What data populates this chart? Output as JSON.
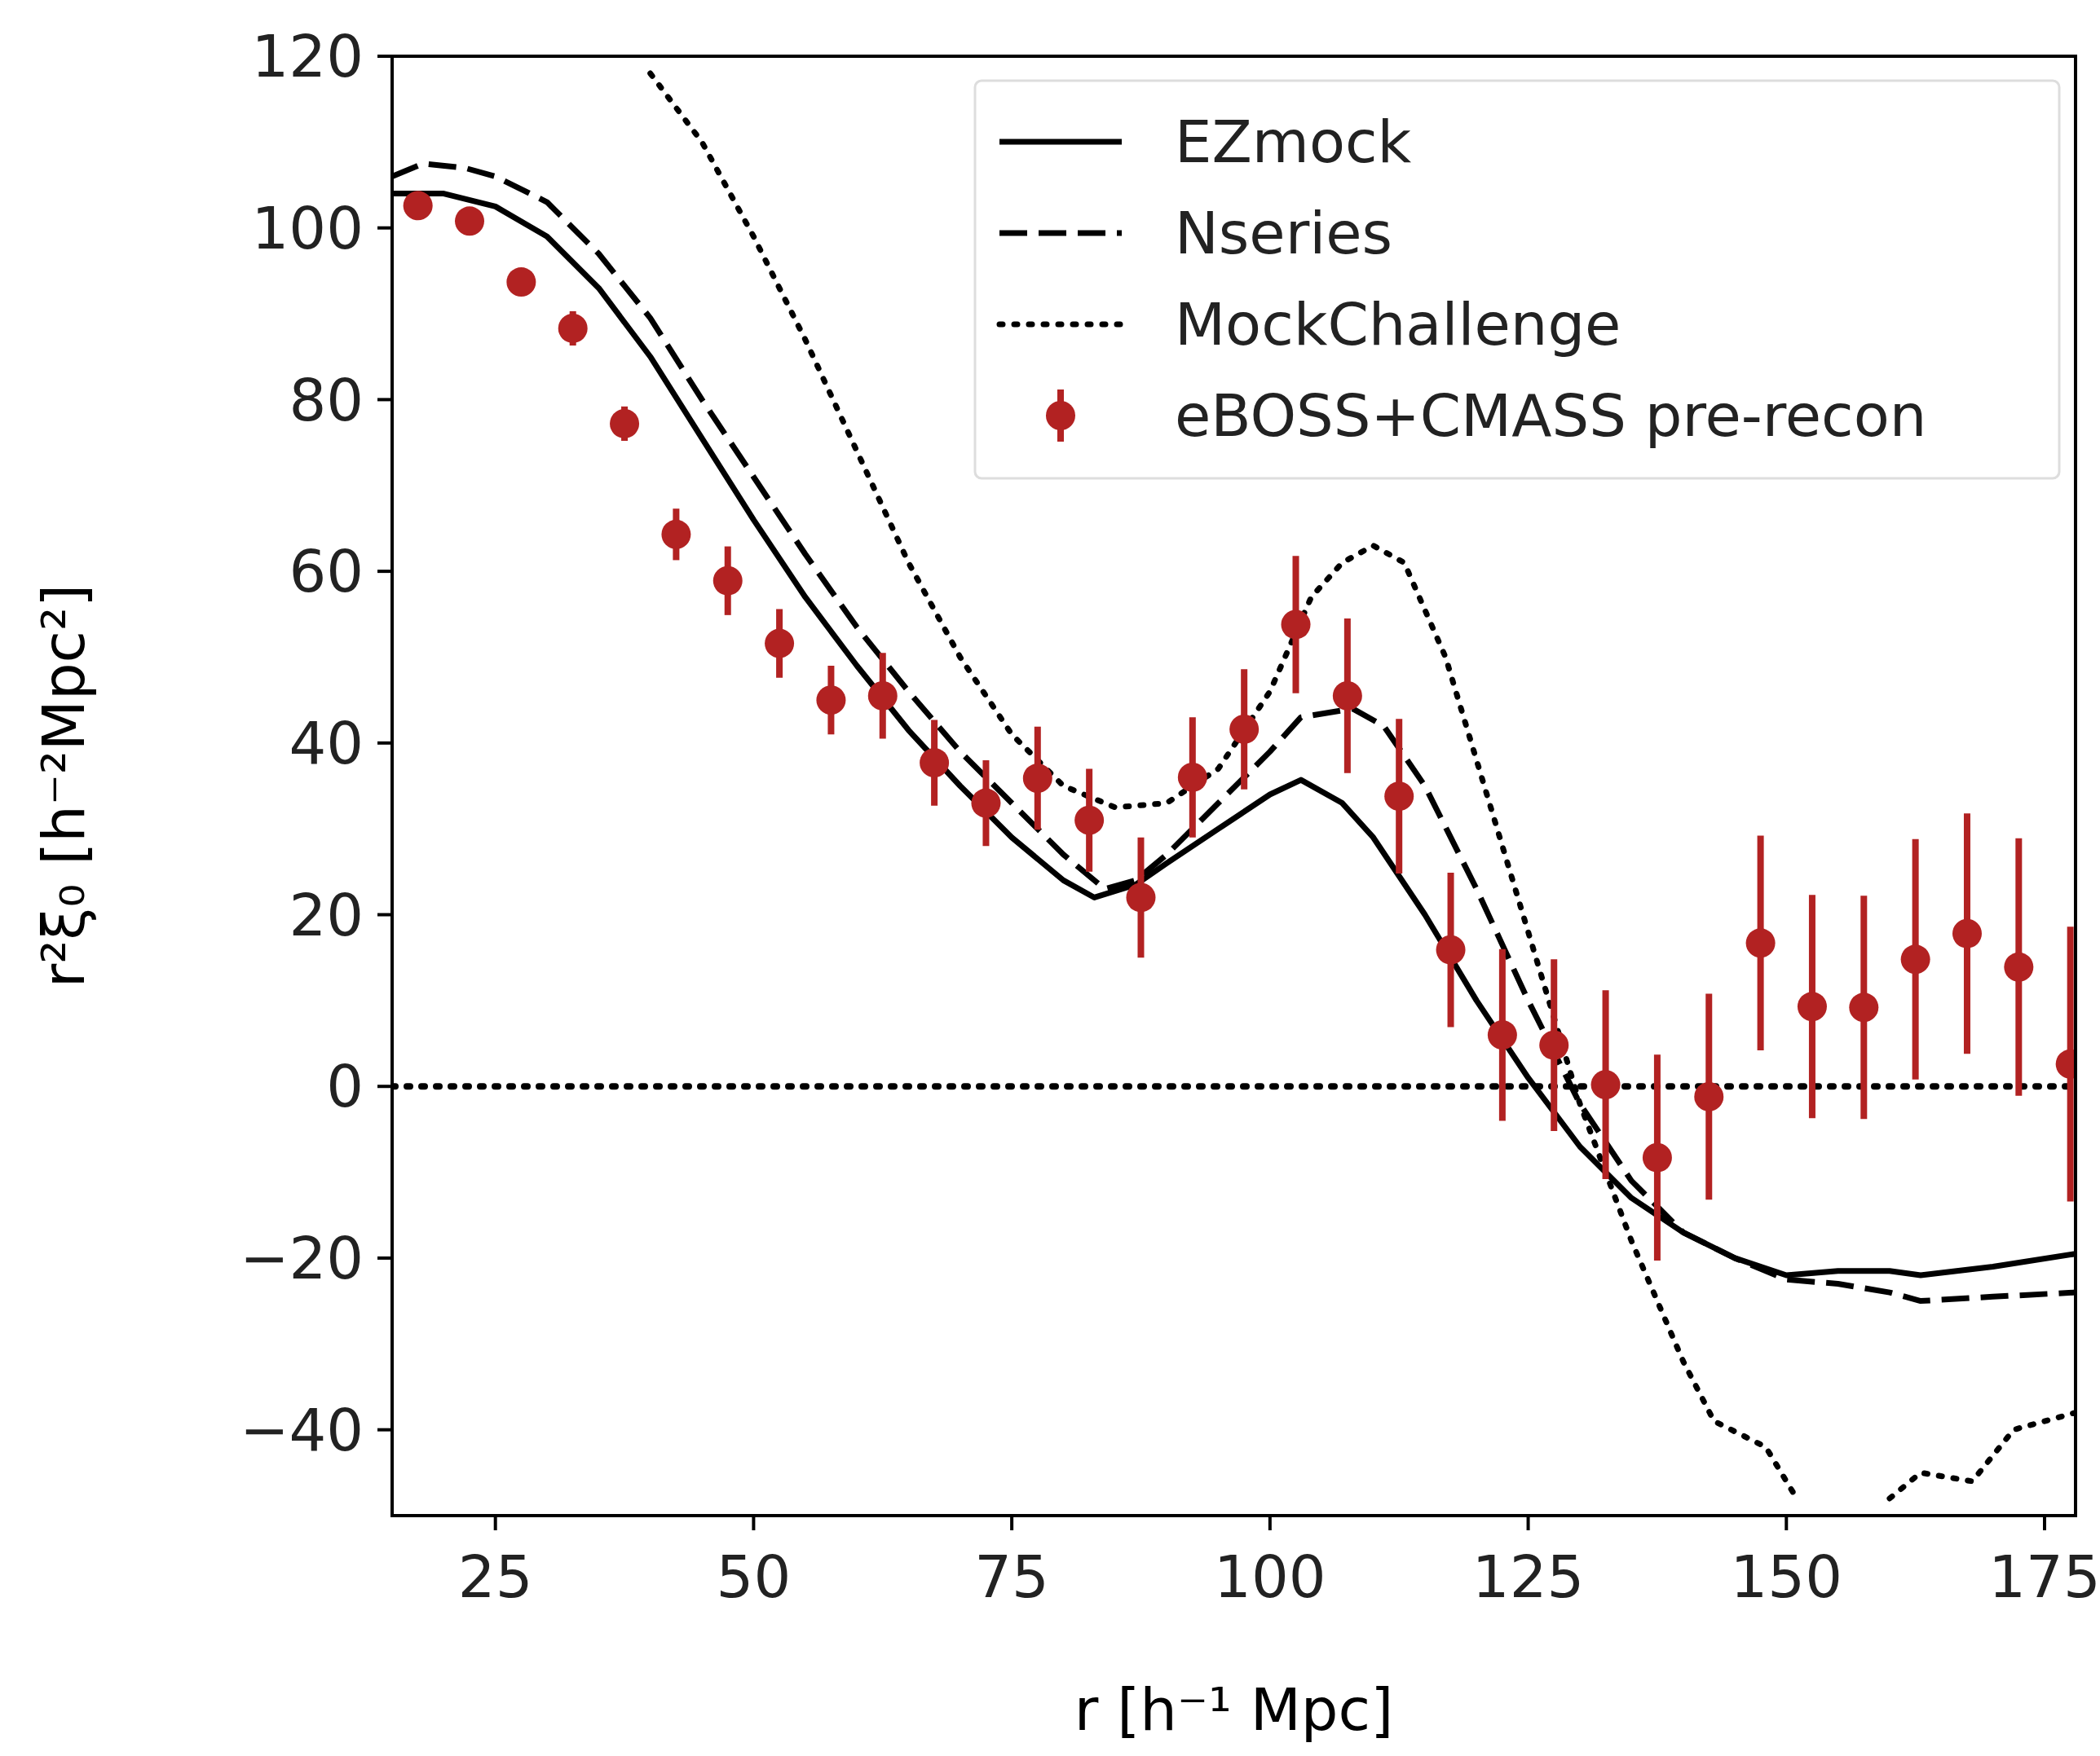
{
  "chart_data": {
    "type": "line",
    "xlabel": "r [h⁻¹ Mpc]",
    "ylabel": "r²ξ₀ [h⁻²Mpc²]",
    "xlim": [
      15,
      178
    ],
    "ylim": [
      -50,
      120
    ],
    "xticks": [
      25,
      50,
      75,
      100,
      125,
      150,
      175
    ],
    "yticks": [
      -40,
      -20,
      0,
      20,
      40,
      60,
      80,
      100,
      120
    ],
    "grid": false,
    "legend": "top right",
    "ref_lines": [
      {
        "axis": "y",
        "value": 0,
        "color": "#000000",
        "line_style": "dotted"
      }
    ],
    "series": [
      {
        "name": "EZmock",
        "type": "line",
        "color": "#000000",
        "line_style": "solid",
        "x": [
          15,
          20,
          25,
          30,
          35,
          40,
          45,
          50,
          55,
          60,
          65,
          70,
          75,
          80,
          83,
          87,
          90,
          95,
          100,
          103,
          107,
          110,
          115,
          120,
          125,
          130,
          135,
          140,
          145,
          150,
          155,
          160,
          163,
          170,
          178
        ],
        "values": [
          104,
          104,
          102.5,
          99,
          93,
          85,
          75.5,
          66,
          57,
          49,
          41.5,
          35,
          29,
          24,
          22,
          23.5,
          26,
          30,
          34,
          35.7,
          33,
          29,
          20,
          10,
          1,
          -7,
          -13,
          -17,
          -20,
          -22,
          -21.5,
          -21.5,
          -22,
          -21,
          -19.5
        ]
      },
      {
        "name": "Nseries",
        "type": "line",
        "color": "#000000",
        "line_style": "dashed",
        "x": [
          15,
          18,
          22,
          25,
          30,
          35,
          40,
          45,
          50,
          55,
          60,
          65,
          70,
          75,
          80,
          84,
          87,
          90,
          95,
          100,
          103,
          108,
          111,
          115,
          120,
          125,
          130,
          135,
          140,
          145,
          150,
          155,
          160,
          163,
          170,
          178
        ],
        "values": [
          106,
          107.5,
          107,
          106,
          103,
          97,
          89.5,
          80,
          71,
          62,
          53.5,
          46,
          39,
          33,
          27,
          23,
          24,
          27,
          33,
          39,
          43,
          44,
          42,
          35,
          23,
          10,
          -2,
          -11,
          -17,
          -20,
          -22.5,
          -23,
          -24,
          -25,
          -24.5,
          -24
        ]
      },
      {
        "name": "MockChallenge",
        "type": "line",
        "color": "#000000",
        "line_style": "dotted",
        "x": [
          40,
          45,
          50,
          55,
          60,
          65,
          70,
          75,
          80,
          85,
          90,
          95,
          100,
          104,
          107,
          110,
          113,
          117,
          120,
          125,
          130,
          135,
          140,
          143,
          148,
          151,
          156,
          160,
          163,
          168,
          172,
          178
        ],
        "values": [
          118,
          110,
          99,
          87,
          74,
          61,
          50,
          41,
          35,
          32.5,
          33,
          37,
          46,
          57,
          61,
          63,
          61,
          50,
          38,
          18,
          -2,
          -18,
          -32,
          -39,
          -42,
          -48,
          null,
          -48,
          -45,
          -46,
          -40,
          -38
        ]
      },
      {
        "name": "eBOSS+CMASS pre-recon",
        "type": "scatter",
        "color": "#b22222",
        "marker": "circle",
        "x": [
          17.5,
          22.5,
          27.5,
          32.5,
          37.5,
          42.5,
          47.5,
          52.5,
          57.5,
          62.5,
          67.5,
          72.5,
          77.5,
          82.5,
          87.5,
          92.5,
          97.5,
          102.5,
          107.5,
          112.5,
          117.5,
          122.5,
          127.5,
          132.5,
          137.5,
          142.5,
          147.5,
          152.5,
          157.5,
          162.5,
          167.5,
          172.5,
          177.5
        ],
        "values": [
          102.6,
          100.8,
          93.7,
          88.3,
          77.2,
          64.3,
          58.9,
          51.6,
          45,
          45.5,
          37.7,
          33,
          35.9,
          31,
          22,
          36,
          41.6,
          53.8,
          45.5,
          33.8,
          15.9,
          6,
          4.8,
          0.2,
          -8.3,
          -1.2,
          16.7,
          9.3,
          9.2,
          14.8,
          17.8,
          13.9,
          2.6
        ],
        "errors": [
          1.5,
          1.5,
          1.5,
          2,
          2,
          3,
          4,
          4,
          4,
          5,
          5,
          5,
          6,
          6,
          7,
          7,
          7,
          8,
          9,
          9,
          9,
          10,
          10,
          11,
          12,
          12,
          12.5,
          13,
          13,
          14,
          14,
          15,
          16
        ]
      }
    ]
  }
}
